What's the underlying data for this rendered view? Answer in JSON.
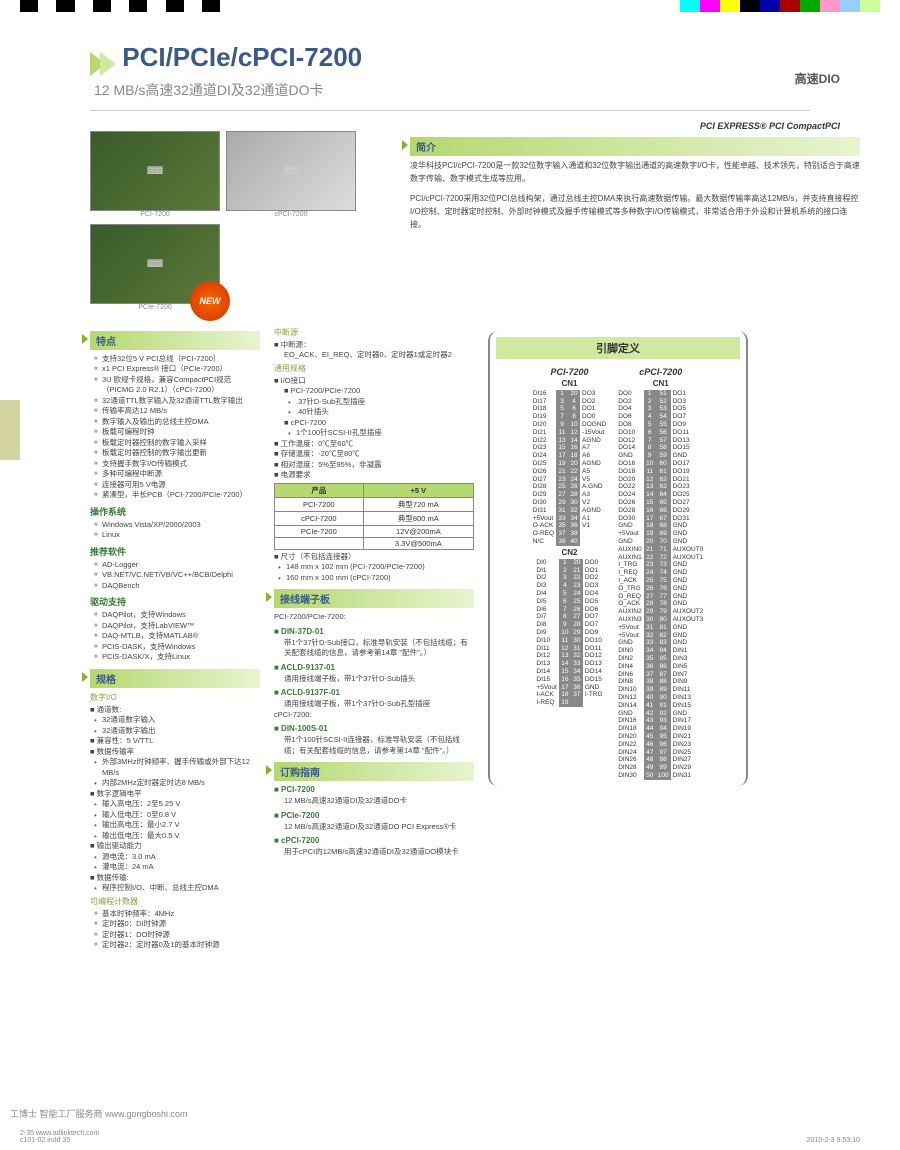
{
  "colorbar_left": [
    "#000",
    "#fff",
    "#000",
    "#fff",
    "#000",
    "#fff",
    "#000",
    "#fff",
    "#000",
    "#fff",
    "#000"
  ],
  "colorbar_right": [
    "#0ff",
    "#f0f",
    "#ff0",
    "#000",
    "#00a",
    "#a00",
    "#0a0",
    "#f9c",
    "#9cf",
    "#cf9"
  ],
  "top_category": "高速DIO",
  "title": "PCI/PCIe/cPCI-7200",
  "subtitle": "12 MB/s高速32通道DI及32通道DO卡",
  "logos": "PCI EXPRESS®   PCI   CompactPCI",
  "img_labels": [
    "PCI-7200",
    "cPCI-7200",
    "PCIe-7200"
  ],
  "new_badge": "NEW",
  "intro_hdr": "简介",
  "intro_p1": "凌华科技PCI/cPCI-7200是一款32位数字输入通道和32位数字输出通道的高速数字I/O卡，性能卓越、技术领先，特别适合于高速数字传输、数字模式生成等应用。",
  "intro_p2": "PCI/cPCI-7200采用32位PCI总线构架，通过总线主控DMA来执行高速数据传输。最大数据传输率高达12MB/s，并支持直接程控I/O控制、定时器定时控制、外部时钟模式及握手传输模式等多种数字I/O传输模式，非常适合用于外设和计算机系统的接口连接。",
  "features_hdr": "特点",
  "features": [
    "支持32位5 V PCI总线（PCI-7200）",
    "x1 PCI Express® 接口（PCIe-7200）",
    "3U 欧规卡规格，兼容CompactPCI规范（PICMG 2.0 R2.1）（cPCI-7200）",
    "32通道TTL数字输入及32通道TTL数字输出",
    "传输率高达12 MB/s",
    "数字输入及输出的总线主控DMA",
    "板载可编程时钟",
    "板载定时器控制的数字输入采样",
    "板载定时器控制的数字输出更新",
    "支持握手数字I/O传输模式",
    "多种可编程中断源",
    "连接器可用5 V电源",
    "紧凑型，半长PCB（PCI-7200/PCIe-7200）"
  ],
  "os_hdr": "操作系统",
  "os": [
    "Windows Vista/XP/2000/2003",
    "Linux"
  ],
  "sw_hdr": "推荐软件",
  "sw": [
    "AD-Logger",
    "VB.NET/VC.NET/VB/VC++/BCB/Delphi",
    "DAQBench"
  ],
  "drv_hdr": "驱动支持",
  "drv": [
    "DAQPilot，支持Windows",
    "DAQPilot，支持LabVIEW™",
    "DAQ-MTLB，支持MATLAB®",
    "PCIS-DASK，支持Windows",
    "PCIS-DASK/X，支持Linux"
  ],
  "spec_hdr": "规格",
  "dio_hdr": "数字I/O",
  "dio_ch_hdr": "通道数:",
  "dio_ch": [
    "32通道数字输入",
    "32通道数字输出"
  ],
  "dio_compat": "兼容性：5 V/TTL",
  "dio_rate_hdr": "数据传输率",
  "dio_rate": [
    "外部3MHz时钟频率、握手传输或外部下达12 MB/s",
    "内部2MHz定时器定时达8 MB/s"
  ],
  "dio_logic_hdr": "数字逻辑电平",
  "dio_logic": [
    "输入高电压：2至5.25 V",
    "输入低电压：0至0.8 V",
    "输出高电压：最小2.7 V",
    "输出低电压：最大0.5 V"
  ],
  "dio_drive_hdr": "输出驱动能力",
  "dio_drive": [
    "源电流：3.0 mA",
    "灌电流：24 mA"
  ],
  "dio_xfer_hdr": "数据传输:",
  "dio_xfer": [
    "程序控制I/O、中断、总线主控DMA"
  ],
  "timer_hdr": "可编程计数器",
  "timer": [
    "基本时钟频率：4MHz",
    "定时器0：DI时钟源",
    "定时器1：DO时钟源",
    "定时器2：定时器0及1的基本时钟源"
  ],
  "int_hdr": "中断源",
  "int_src_hdr": "中断源：",
  "int_src": "EO_ACK、EI_REQ、定时器0、定时器1或定时器2",
  "gen_hdr": "通用规格",
  "io_hdr": "I/O接口",
  "io_a_hdr": "PCI-7200/PCIe-7200",
  "io_a": [
    ".37针D-Sub孔型插座",
    ".40针插头"
  ],
  "io_b_hdr": "cPCI-7200",
  "io_b": [
    "1个100针SCSI-II孔型插座"
  ],
  "temp_op": "工作温度：0℃至60℃",
  "temp_st": "存储温度：-20℃至80℃",
  "humid": "相对湿度：5%至95%，非凝露",
  "power_hdr": "电源要求",
  "power_cols": [
    "产品",
    "+5 V"
  ],
  "power_rows": [
    [
      "PCI-7200",
      "典型720 mA"
    ],
    [
      "cPCI-7200",
      "典型800 mA"
    ],
    [
      "PCIe-7200",
      "12V@200mA"
    ],
    [
      "",
      "3.3V@500mA"
    ]
  ],
  "dim_hdr": "尺寸（不包括连接器）",
  "dim": [
    "148 mm x 102 mm (PCI-7200/PCIe-7200)",
    "160 mm x 100 mm (cPCI-7200)"
  ],
  "term_hdr": "接线端子板",
  "term_a": "PCI-7200/PCIe-7200:",
  "term_items": [
    {
      "n": "DIN-37D-01",
      "d": "带1个37针D-Sub接口，标准导轨安装（不包括线缆；有关配套线缆的信息，请参考第14章 \"配件\"。）"
    },
    {
      "n": "ACLD-9137-01",
      "d": "通用接线端子板，带1个37针D-Sub插头"
    },
    {
      "n": "ACLD-9137F-01",
      "d": "通用接线端子板，带1个37针D-Sub孔型插座"
    }
  ],
  "term_b": "cPCI-7200:",
  "term_b_items": [
    {
      "n": "DIN-100S-01",
      "d": "带1个100针SCSI-II连接器，标准导轨安装（不包括线缆；有关配套线缆的信息，请参考第14章 \"配件\"。）"
    }
  ],
  "order_hdr": "订购指南",
  "order": [
    {
      "n": "PCI-7200",
      "d": "12 MB/s高速32通道DI及32通道DO卡"
    },
    {
      "n": "PCIe-7200",
      "d": "12 MB/s高速32通道DI及32通道DO PCI Express®卡"
    },
    {
      "n": "cPCI-7200",
      "d": "用于cPCI的12MB/s高速32通道DI及32通道DO模块卡"
    }
  ],
  "pin_hdr": "引脚定义",
  "pci_title": "PCI-7200",
  "cpci_title": "cPCI-7200",
  "cn1": "CN1",
  "cn2": "CN2",
  "pci_cn1": [
    [
      "DI16",
      "1",
      "20",
      "DO3"
    ],
    [
      "DI17",
      "3",
      "4",
      "DO2"
    ],
    [
      "DI18",
      "5",
      "6",
      "DO1"
    ],
    [
      "DI19",
      "7",
      "8",
      "DO0"
    ],
    [
      "DI20",
      "9",
      "10",
      "DOGND"
    ],
    [
      "DI21",
      "11",
      "12",
      "-15Vout"
    ],
    [
      "DI22",
      "13",
      "14",
      "AGND"
    ],
    [
      "DI23",
      "15",
      "16",
      "A7"
    ],
    [
      "DI24",
      "17",
      "18",
      "A6"
    ],
    [
      "DI25",
      "19",
      "20",
      "AGND"
    ],
    [
      "DI26",
      "21",
      "22",
      "A5"
    ],
    [
      "DI27",
      "23",
      "24",
      "V5"
    ],
    [
      "DI28",
      "25",
      "26",
      "A.GND"
    ],
    [
      "DI29",
      "27",
      "28",
      "A3"
    ],
    [
      "DI30",
      "29",
      "30",
      "V2"
    ],
    [
      "DI31",
      "31",
      "32",
      "AGND"
    ],
    [
      "+5Vout",
      "33",
      "34",
      "A1"
    ],
    [
      "O-ACK",
      "35",
      "36",
      "V1"
    ],
    [
      "O-REQ",
      "37",
      "38",
      ""
    ],
    [
      "N/C",
      "39",
      "40",
      ""
    ]
  ],
  "pci_cn2": [
    [
      "DI0",
      "1",
      "20",
      "DO0"
    ],
    [
      "DI1",
      "2",
      "21",
      "DO1"
    ],
    [
      "DI2",
      "3",
      "22",
      "DO2"
    ],
    [
      "DI3",
      "4",
      "23",
      "DO3"
    ],
    [
      "DI4",
      "5",
      "24",
      "DO4"
    ],
    [
      "DI5",
      "6",
      "25",
      "DO5"
    ],
    [
      "DI6",
      "7",
      "26",
      "DO6"
    ],
    [
      "DI7",
      "8",
      "27",
      "DO7"
    ],
    [
      "DI8",
      "9",
      "28",
      "DO7"
    ],
    [
      "DI9",
      "10",
      "29",
      "DO9"
    ],
    [
      "DI10",
      "11",
      "30",
      "DO10"
    ],
    [
      "DI11",
      "12",
      "31",
      "DO11"
    ],
    [
      "DI12",
      "13",
      "32",
      "DO12"
    ],
    [
      "DI13",
      "14",
      "33",
      "DO13"
    ],
    [
      "DI14",
      "15",
      "34",
      "DO14"
    ],
    [
      "DI15",
      "16",
      "35",
      "DO15"
    ],
    [
      "+5Vout",
      "17",
      "36",
      "GND"
    ],
    [
      "I-ACK",
      "18",
      "37",
      "I-TRG"
    ],
    [
      "I-REQ",
      "19",
      "",
      ""
    ]
  ],
  "cpci_cn1": [
    [
      "DO0",
      "1",
      "51",
      "DO1"
    ],
    [
      "DO2",
      "2",
      "52",
      "DO3"
    ],
    [
      "DO4",
      "3",
      "53",
      "DO5"
    ],
    [
      "DO6",
      "4",
      "54",
      "DO7"
    ],
    [
      "DO8",
      "5",
      "55",
      "DO9"
    ],
    [
      "DO10",
      "6",
      "56",
      "DO11"
    ],
    [
      "DO12",
      "7",
      "57",
      "DO13"
    ],
    [
      "DO14",
      "8",
      "58",
      "DO15"
    ],
    [
      "GND",
      "9",
      "59",
      "GND"
    ],
    [
      "DO16",
      "10",
      "60",
      "DO17"
    ],
    [
      "DO18",
      "11",
      "61",
      "DO19"
    ],
    [
      "DO20",
      "12",
      "62",
      "DO21"
    ],
    [
      "DO22",
      "13",
      "63",
      "DO23"
    ],
    [
      "DO24",
      "14",
      "64",
      "DO25"
    ],
    [
      "DO26",
      "15",
      "65",
      "DO27"
    ],
    [
      "DO28",
      "16",
      "66",
      "DO29"
    ],
    [
      "DO30",
      "17",
      "67",
      "DO31"
    ],
    [
      "GND",
      "18",
      "68",
      "GND"
    ],
    [
      "+5Vout",
      "19",
      "69",
      "GND"
    ],
    [
      "GND",
      "20",
      "70",
      "GND"
    ],
    [
      "AUXIN0",
      "21",
      "71",
      "AUXOUT0"
    ],
    [
      "AUXIN1",
      "22",
      "72",
      "AUXOUT1"
    ],
    [
      "I_TRG",
      "23",
      "73",
      "GND"
    ],
    [
      "I_REQ",
      "24",
      "74",
      "GND"
    ],
    [
      "I_ACK",
      "25",
      "75",
      "GND"
    ],
    [
      "O_TRG",
      "26",
      "76",
      "GND"
    ],
    [
      "O_REQ",
      "27",
      "77",
      "GND"
    ],
    [
      "O_ACK",
      "28",
      "78",
      "GND"
    ],
    [
      "AUXIN2",
      "29",
      "79",
      "AUXOUT2"
    ],
    [
      "AUXIN3",
      "30",
      "80",
      "AUXOUT3"
    ],
    [
      "+5Vout",
      "31",
      "81",
      "GND"
    ],
    [
      "+5Vout",
      "32",
      "82",
      "GND"
    ],
    [
      "GND",
      "33",
      "83",
      "GND"
    ],
    [
      "DIN0",
      "34",
      "84",
      "DIN1"
    ],
    [
      "DIN2",
      "35",
      "85",
      "DIN3"
    ],
    [
      "DIN4",
      "36",
      "86",
      "DIN5"
    ],
    [
      "DIN6",
      "37",
      "87",
      "DIN7"
    ],
    [
      "DIN8",
      "38",
      "88",
      "DIN9"
    ],
    [
      "DIN10",
      "39",
      "89",
      "DIN11"
    ],
    [
      "DIN12",
      "40",
      "90",
      "DIN13"
    ],
    [
      "DIN14",
      "41",
      "91",
      "DIN15"
    ],
    [
      "GND",
      "42",
      "92",
      "GND"
    ],
    [
      "DIN16",
      "43",
      "93",
      "DIN17"
    ],
    [
      "DIN18",
      "44",
      "94",
      "DIN19"
    ],
    [
      "DIN20",
      "45",
      "95",
      "DIN21"
    ],
    [
      "DIN22",
      "46",
      "96",
      "DIN23"
    ],
    [
      "DIN24",
      "47",
      "97",
      "DIN25"
    ],
    [
      "DIN26",
      "48",
      "98",
      "DIN27"
    ],
    [
      "DIN28",
      "49",
      "99",
      "DIN29"
    ],
    [
      "DIN30",
      "50",
      "100",
      "DIN31"
    ]
  ],
  "page": "2-35",
  "url": "www.adlinktech.com",
  "gongboshi": "工博士 智能工厂服务商 www.gongboshi.com",
  "footer_right": "2010-2-3  9:53:10",
  "footer_left": "c101-02.indd  35"
}
